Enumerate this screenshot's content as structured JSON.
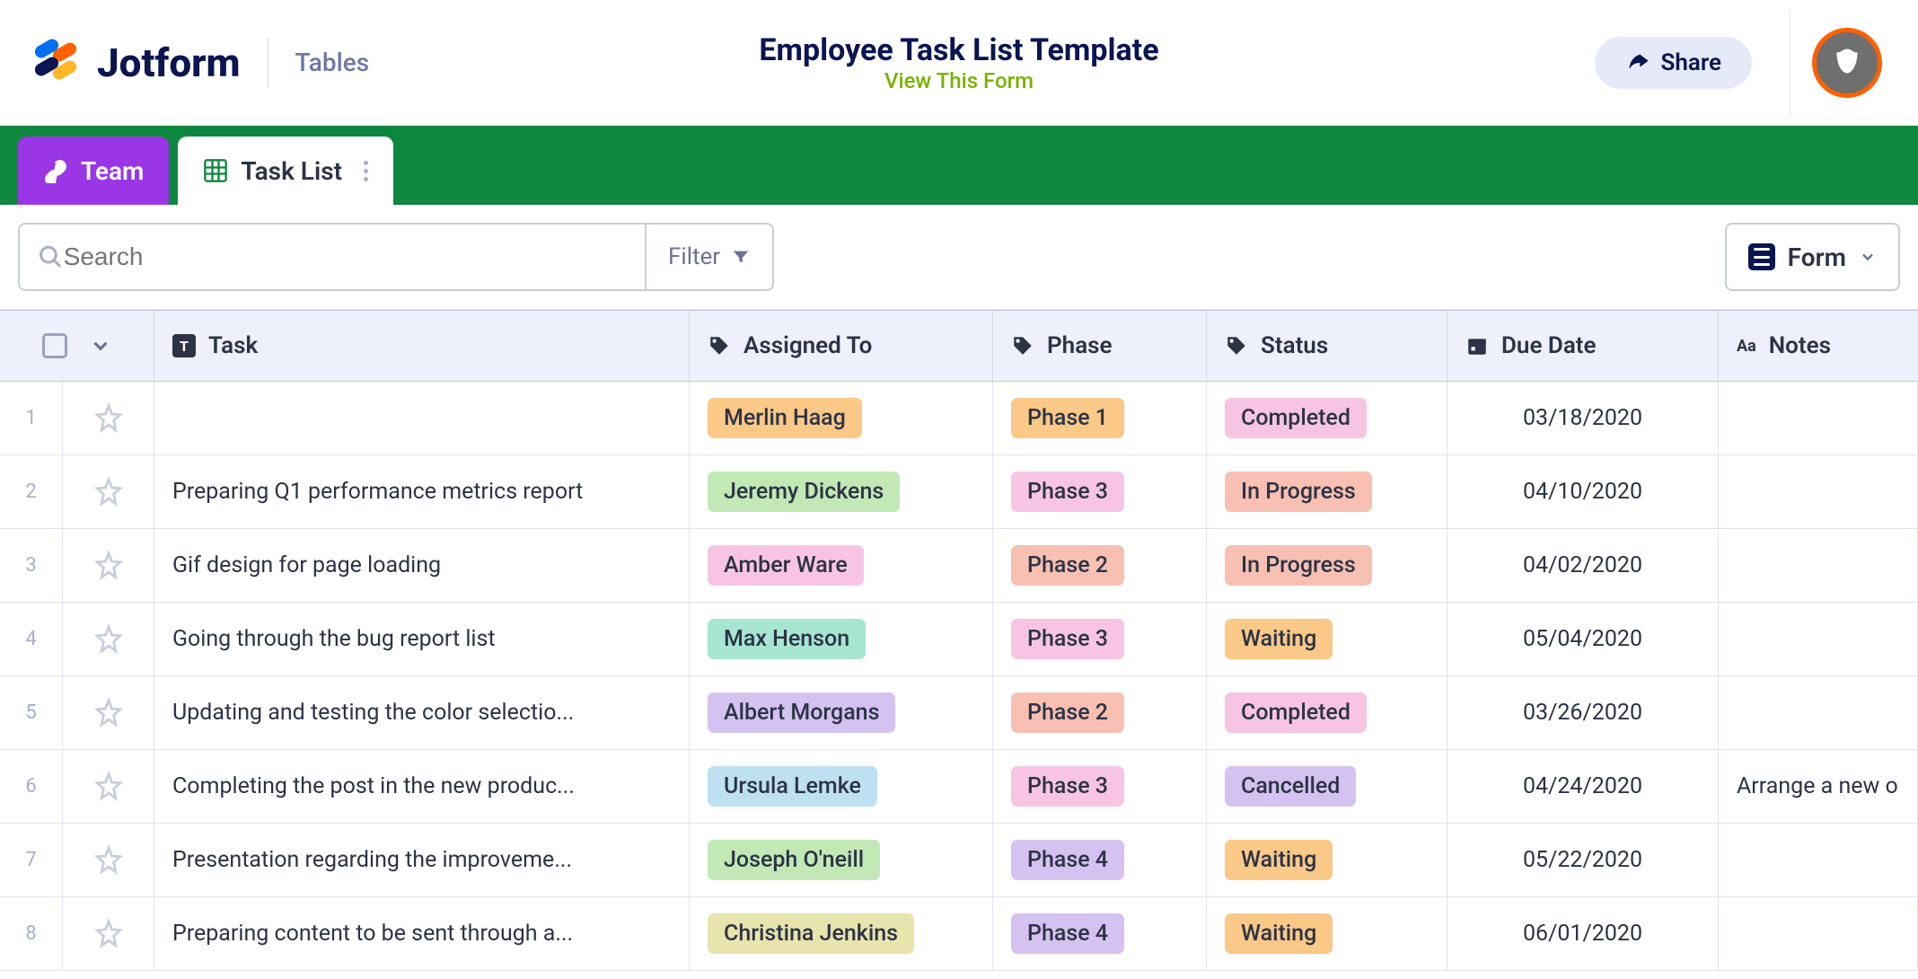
{
  "header": {
    "brand": "Jotform",
    "section": "Tables",
    "title": "Employee Task List Template",
    "view_link": "View This Form",
    "share": "Share"
  },
  "tabs": {
    "team": "Team",
    "tasklist": "Task List"
  },
  "toolbar": {
    "search_placeholder": "Search",
    "filter": "Filter",
    "form": "Form"
  },
  "columns": {
    "task": "Task",
    "assigned": "Assigned To",
    "phase": "Phase",
    "status": "Status",
    "due": "Due Date",
    "notes": "Notes"
  },
  "tag_colors": {
    "assignee": {
      "Merlin Haag": "#fac887",
      "Jeremy Dickens": "#c2e8b5",
      "Amber Ware": "#f7c5e3",
      "Max Henson": "#a7e6d1",
      "Albert Morgans": "#d4c2f0",
      "Ursula Lemke": "#bde1f0",
      "Joseph O'neill": "#c2e8b5",
      "Christina Jenkins": "#e7e4ad"
    },
    "phase": {
      "Phase 1": "#fac887",
      "Phase 2": "#f7c0b2",
      "Phase 3": "#f7c5e3",
      "Phase 4": "#d4c2f0"
    },
    "status": {
      "Completed": "#f7c5e3",
      "In Progress": "#f7c0b2",
      "Waiting": "#fac887",
      "Cancelled": "#d4c2f0"
    }
  },
  "rows": [
    {
      "n": "1",
      "task": "",
      "assignee": "Merlin Haag",
      "phase": "Phase 1",
      "status": "Completed",
      "due": "03/18/2020",
      "notes": ""
    },
    {
      "n": "2",
      "task": "Preparing Q1 performance metrics report",
      "assignee": "Jeremy Dickens",
      "phase": "Phase 3",
      "status": "In Progress",
      "due": "04/10/2020",
      "notes": ""
    },
    {
      "n": "3",
      "task": "Gif design for page loading",
      "assignee": "Amber Ware",
      "phase": "Phase 2",
      "status": "In Progress",
      "due": "04/02/2020",
      "notes": ""
    },
    {
      "n": "4",
      "task": "Going through the bug report list",
      "assignee": "Max Henson",
      "phase": "Phase 3",
      "status": "Waiting",
      "due": "05/04/2020",
      "notes": ""
    },
    {
      "n": "5",
      "task": "Updating and testing the color selectio...",
      "assignee": "Albert Morgans",
      "phase": "Phase 2",
      "status": "Completed",
      "due": "03/26/2020",
      "notes": ""
    },
    {
      "n": "6",
      "task": "Completing the post in the new produc...",
      "assignee": "Ursula Lemke",
      "phase": "Phase 3",
      "status": "Cancelled",
      "due": "04/24/2020",
      "notes": "Arrange a new o"
    },
    {
      "n": "7",
      "task": "Presentation regarding the improveme...",
      "assignee": "Joseph O'neill",
      "phase": "Phase 4",
      "status": "Waiting",
      "due": "05/22/2020",
      "notes": ""
    },
    {
      "n": "8",
      "task": "Preparing content to be sent through a...",
      "assignee": "Christina Jenkins",
      "phase": "Phase 4",
      "status": "Waiting",
      "due": "06/01/2020",
      "notes": ""
    }
  ]
}
